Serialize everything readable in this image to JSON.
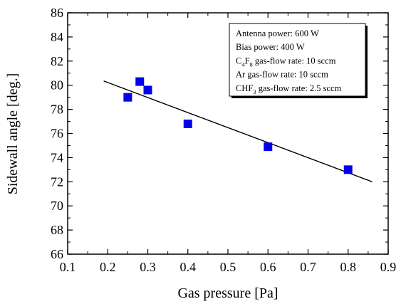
{
  "chart_data": {
    "type": "scatter",
    "xlabel": "Gas pressure [Pa]",
    "ylabel": "Sidewall angle [deg.]",
    "xlim": [
      0.1,
      0.9
    ],
    "ylim": [
      66,
      86
    ],
    "xticks": [
      "0.1",
      "0.2",
      "0.3",
      "0.4",
      "0.5",
      "0.6",
      "0.7",
      "0.8",
      "0.9"
    ],
    "yticks": [
      "66",
      "68",
      "70",
      "72",
      "74",
      "76",
      "78",
      "80",
      "82",
      "84",
      "86"
    ],
    "grid": false,
    "legend_placement": "top-right",
    "legend_lines": [
      {
        "parts": [
          {
            "t": "Antenna power: 600 W"
          }
        ]
      },
      {
        "parts": [
          {
            "t": "Bias power: 400 W"
          }
        ]
      },
      {
        "parts": [
          {
            "t": "C"
          },
          {
            "t": "4",
            "sub": true
          },
          {
            "t": "F"
          },
          {
            "t": "8",
            "sub": true
          },
          {
            "t": " gas-flow rate: 10 sccm"
          }
        ]
      },
      {
        "parts": [
          {
            "t": "Ar gas-flow rate: 10 sccm"
          }
        ]
      },
      {
        "parts": [
          {
            "t": "CHF"
          },
          {
            "t": "3",
            "sub": true
          },
          {
            "t": " gas-flow rate: 2.5 sccm"
          }
        ]
      }
    ],
    "series": [
      {
        "type": "scatter",
        "marker": "square",
        "color": "#0000ee",
        "points": [
          {
            "x": 0.25,
            "y": 79.0
          },
          {
            "x": 0.28,
            "y": 80.3
          },
          {
            "x": 0.3,
            "y": 79.6
          },
          {
            "x": 0.4,
            "y": 76.8
          },
          {
            "x": 0.6,
            "y": 74.9
          },
          {
            "x": 0.8,
            "y": 73.0
          }
        ]
      },
      {
        "type": "line",
        "color": "#000000",
        "points": [
          {
            "x": 0.19,
            "y": 80.35
          },
          {
            "x": 0.86,
            "y": 72.0
          }
        ]
      }
    ]
  }
}
